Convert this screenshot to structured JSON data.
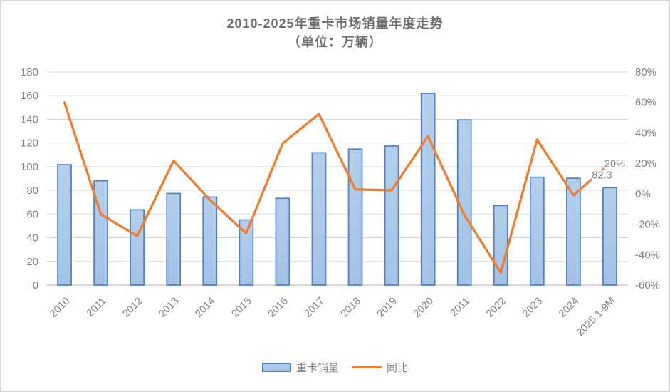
{
  "title": {
    "line1": "2010-2025年重卡市场销量年度走势",
    "line2": "（单位：万辆）"
  },
  "chart_data": {
    "type": "bar+line-combo",
    "categories": [
      "2010",
      "2011",
      "2012",
      "2013",
      "2014",
      "2015",
      "2016",
      "2017",
      "2018",
      "2019",
      "2020",
      "2011",
      "2022",
      "2023",
      "2024",
      "2025.1-9M"
    ],
    "series": [
      {
        "name": "重卡销量",
        "type": "bar",
        "axis": "left",
        "unit": "万辆",
        "values": [
          101.7,
          88.1,
          63.6,
          77.4,
          74.4,
          55.1,
          73.3,
          111.7,
          114.8,
          117.4,
          161.9,
          139.5,
          67.2,
          91.1,
          90.2,
          82.3
        ]
      },
      {
        "name": "同比",
        "type": "line",
        "axis": "right",
        "unit": "%",
        "values": [
          59.9,
          -13.4,
          -27.8,
          21.7,
          -4,
          -26,
          33,
          52.4,
          2.8,
          2.3,
          37.9,
          -14,
          -51.8,
          35.6,
          -1,
          20
        ]
      }
    ],
    "left_axis": {
      "min": 0,
      "max": 180,
      "step": 20,
      "tick_labels": [
        "0",
        "20",
        "40",
        "60",
        "80",
        "100",
        "120",
        "140",
        "160",
        "180"
      ]
    },
    "right_axis": {
      "min": -60,
      "max": 80,
      "step": 20,
      "tick_labels": [
        "-60%",
        "-40%",
        "-20%",
        "0%",
        "20%",
        "40%",
        "60%",
        "80%"
      ]
    },
    "grid": true,
    "legend_position": "bottom",
    "annotations": [
      {
        "text": "20%",
        "series": "同比",
        "category": "2025.1-9M"
      },
      {
        "text": "82.3",
        "series": "重卡销量",
        "category": "2025.1-9M"
      }
    ]
  },
  "legend": {
    "items": [
      {
        "label": "重卡销量",
        "swatch": "bar"
      },
      {
        "label": "同比",
        "swatch": "line"
      }
    ]
  },
  "colors": {
    "bar_fill_top": "#b4cfec",
    "bar_fill_bottom": "#a2c2e6",
    "bar_border": "#4e80c0",
    "line": "#ed7d31",
    "grid": "#d9d9d9",
    "axis_line": "#bfbfbf",
    "tick_label": "#808080",
    "title": "#6e6e6e",
    "annotation": "#7f7f7f",
    "panel_border": "#d7d7d7"
  }
}
